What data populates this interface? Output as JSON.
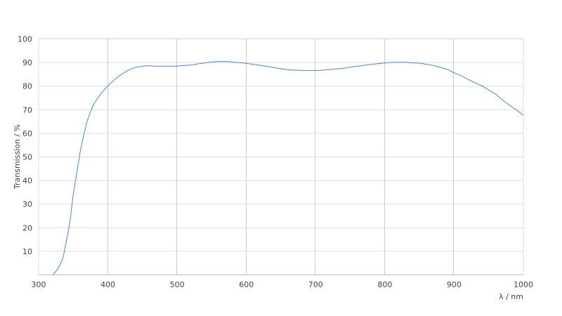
{
  "chart_data": {
    "type": "line",
    "title": "",
    "xlabel": "λ / nm",
    "ylabel": "Transmission / %",
    "xlim": [
      300,
      1000
    ],
    "ylim": [
      0,
      100
    ],
    "xticks": [
      300,
      400,
      500,
      600,
      700,
      800,
      900,
      1000
    ],
    "yticks": [
      10,
      20,
      30,
      40,
      50,
      60,
      70,
      80,
      90,
      100
    ],
    "grid": true,
    "colors": {
      "line": "#4285f4",
      "grid": "#dddddd",
      "vgrid": "#cccccc"
    },
    "series": [
      {
        "x": [
          321,
          328,
          335,
          340,
          345,
          350,
          355,
          360,
          365,
          370,
          375,
          380,
          390,
          400,
          410,
          420,
          430,
          440,
          450,
          460,
          470,
          480,
          500,
          510,
          520,
          530,
          540,
          550,
          560,
          570,
          580,
          600,
          620,
          640,
          660,
          680,
          700,
          710,
          720,
          740,
          760,
          770,
          790,
          800,
          810,
          820,
          830,
          840,
          850,
          860,
          870,
          880,
          890,
          900,
          910,
          920,
          930,
          940,
          950,
          960,
          970,
          980,
          990,
          1000
        ],
        "y": [
          0,
          2.5,
          6.8,
          14,
          22,
          34,
          43,
          52,
          59,
          65,
          69,
          72.5,
          76.7,
          80,
          82.7,
          85,
          86.7,
          87.8,
          88.3,
          88.5,
          88.3,
          88.3,
          88.3,
          88.6,
          88.8,
          89.3,
          89.7,
          90.1,
          90.3,
          90.3,
          90.1,
          89.5,
          88.7,
          87.7,
          86.8,
          86.5,
          86.5,
          86.6,
          86.9,
          87.4,
          88.3,
          88.7,
          89.4,
          89.7,
          89.9,
          90,
          90,
          89.7,
          89.6,
          89.1,
          88.6,
          87.8,
          87,
          85.5,
          84.3,
          82.8,
          81.3,
          80,
          78.2,
          76.5,
          74,
          71.7,
          69.8,
          67.5
        ]
      }
    ]
  }
}
